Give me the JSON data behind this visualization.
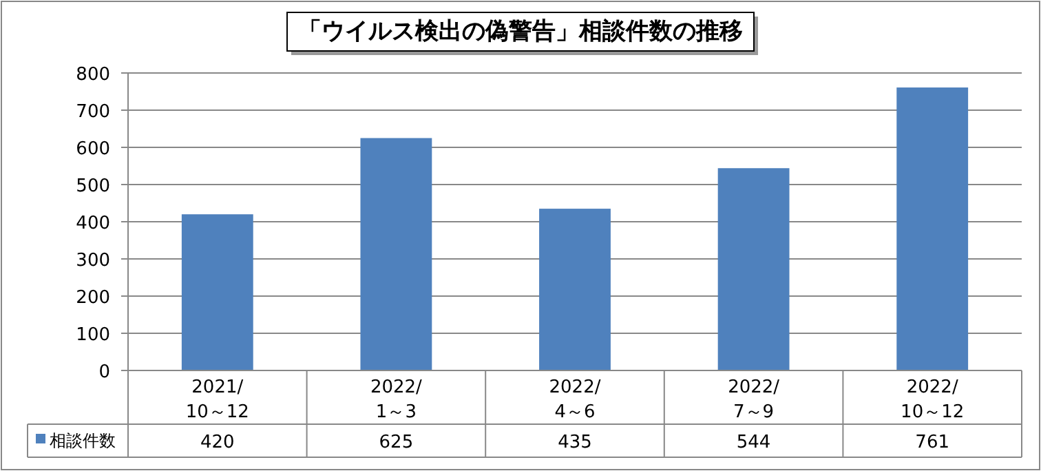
{
  "chart_data": {
    "type": "bar",
    "title": "「ウイルス検出の偽警告」相談件数の推移",
    "categories": [
      "2021/10～12",
      "2022/1～3",
      "2022/4～6",
      "2022/7～9",
      "2022/10～12"
    ],
    "series": [
      {
        "name": "相談件数",
        "color": "#4f81bd",
        "values": [
          420,
          625,
          435,
          544,
          761
        ]
      }
    ],
    "ylim": [
      0,
      800
    ],
    "yticks": [
      0,
      100,
      200,
      300,
      400,
      500,
      600,
      700,
      800
    ],
    "grid": "y",
    "legend": "bottom left",
    "data_labels": true
  }
}
